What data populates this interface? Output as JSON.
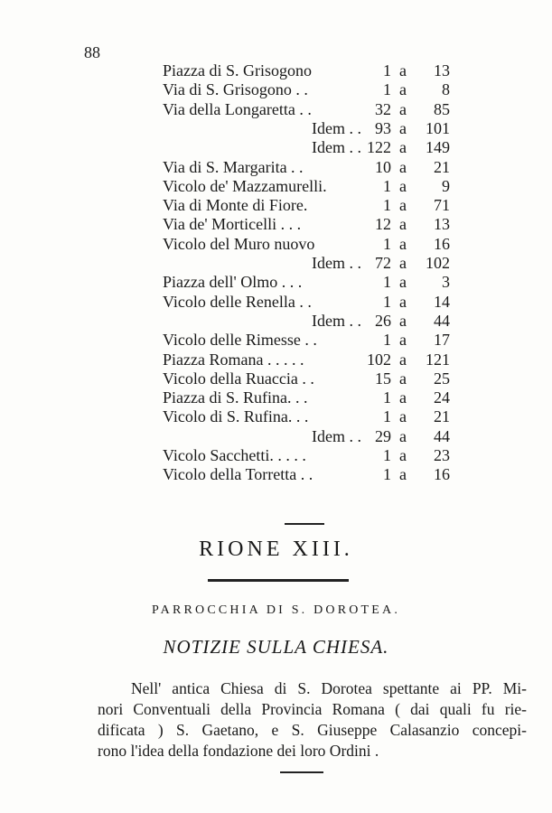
{
  "page_number": "88",
  "table": {
    "rows": [
      [
        "Piazza di S. Grisogono",
        "1",
        "a",
        "13"
      ],
      [
        "Via di S. Grisogono . .",
        "1",
        "a",
        "8"
      ],
      [
        "Via della Longaretta . .",
        "32",
        "a",
        "85"
      ],
      [
        "Idem . .",
        "93",
        "a",
        "101"
      ],
      [
        "Idem . .",
        "122",
        "a",
        "149"
      ],
      [
        "Via di S. Margarita . .",
        "10",
        "a",
        "21"
      ],
      [
        "Vicolo de' Mazzamurelli.",
        "1",
        "a",
        "9"
      ],
      [
        "Via di Monte di Fiore.",
        "1",
        "a",
        "71"
      ],
      [
        "Via de' Morticelli . . .",
        "12",
        "a",
        "13"
      ],
      [
        "Vicolo del Muro nuovo",
        "1",
        "a",
        "16"
      ],
      [
        "Idem . .",
        "72",
        "a",
        "102"
      ],
      [
        "Piazza dell' Olmo . . .",
        "1",
        "a",
        "3"
      ],
      [
        "Vicolo delle Renella . .",
        "1",
        "a",
        "14"
      ],
      [
        "Idem . .",
        "26",
        "a",
        "44"
      ],
      [
        "Vicolo delle Rimesse . .",
        "1",
        "a",
        "17"
      ],
      [
        "Piazza Romana . . . . .",
        "102",
        "a",
        "121"
      ],
      [
        "Vicolo della Ruaccia . .",
        "15",
        "a",
        "25"
      ],
      [
        "Piazza di S. Rufina. . .",
        "1",
        "a",
        "24"
      ],
      [
        "Vicolo di S. Rufina. . .",
        "1",
        "a",
        "21"
      ],
      [
        "Idem . .",
        "29",
        "a",
        "44"
      ],
      [
        "Vicolo Sacchetti. . . . .",
        "1",
        "a",
        "23"
      ],
      [
        "Vicolo della Torretta . .",
        "1",
        "a",
        "16"
      ]
    ]
  },
  "section_title": "RIONE XIII.",
  "parish": "PARROCCHIA DI S. DOROTEA.",
  "subtitle": "NOTIZIE SULLA CHIESA.",
  "paragraph": {
    "lines": [
      "Nell' antica Chiesa di S. Dorotea spettante ai PP. Mi-",
      "nori Conventuali della Provincia Romana ( dai quali fu rie-",
      "dificata ) S. Gaetano, e S. Giuseppe Calasanzio concepi-",
      "rono l'idea della fondazione dei loro Ordini ."
    ]
  }
}
